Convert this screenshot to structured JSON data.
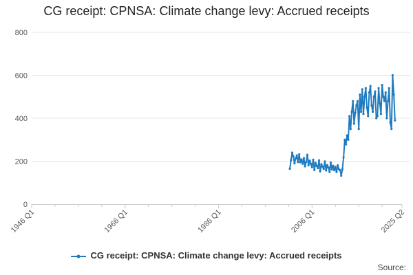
{
  "chart_data": {
    "type": "line",
    "title": "CG receipt: CPNSA: Climate change levy: Accrued receipts",
    "xlabel": "",
    "ylabel": "",
    "ylim": [
      0,
      800
    ],
    "yticks": [
      "0",
      "200",
      "400",
      "600",
      "800"
    ],
    "xticks": [
      "1946 Q1",
      "1966 Q1",
      "1986 Q1",
      "2006 Q1",
      "2025 Q2"
    ],
    "x_range": [
      "1946 Q1",
      "2025 Q2"
    ],
    "grid": true,
    "legend_position": "bottom",
    "series": [
      {
        "name": "CG receipt: CPNSA: Climate change levy: Accrued receipts",
        "color": "#1f7bbf",
        "x_start": "2001 Q2",
        "values": [
          165,
          205,
          240,
          222,
          190,
          213,
          227,
          196,
          232,
          195,
          208,
          188,
          215,
          176,
          197,
          230,
          181,
          203,
          188,
          172,
          207,
          159,
          193,
          178,
          168,
          204,
          153,
          186,
          175,
          164,
          199,
          157,
          182,
          171,
          150,
          194,
          162,
          179,
          158,
          174,
          150,
          181,
          163,
          158,
          133,
          163,
          218,
          300,
          278,
          320,
          300,
          410,
          350,
          430,
          480,
          375,
          425,
          460,
          480,
          350,
          510,
          430,
          535,
          420,
          500,
          540,
          450,
          410,
          520,
          550,
          460,
          430,
          500,
          525,
          400,
          410,
          540,
          470,
          420,
          555,
          500,
          480,
          520,
          400,
          480,
          540,
          380,
          350,
          600,
          510,
          390
        ]
      }
    ]
  },
  "legend": {
    "label": "CG receipt: CPNSA: Climate change levy: Accrued receipts"
  },
  "footer": {
    "source_label": "Source:"
  },
  "colors": {
    "series": "#1f7bbf",
    "grid": "#e6e6e6",
    "axis": "#cccccc"
  }
}
